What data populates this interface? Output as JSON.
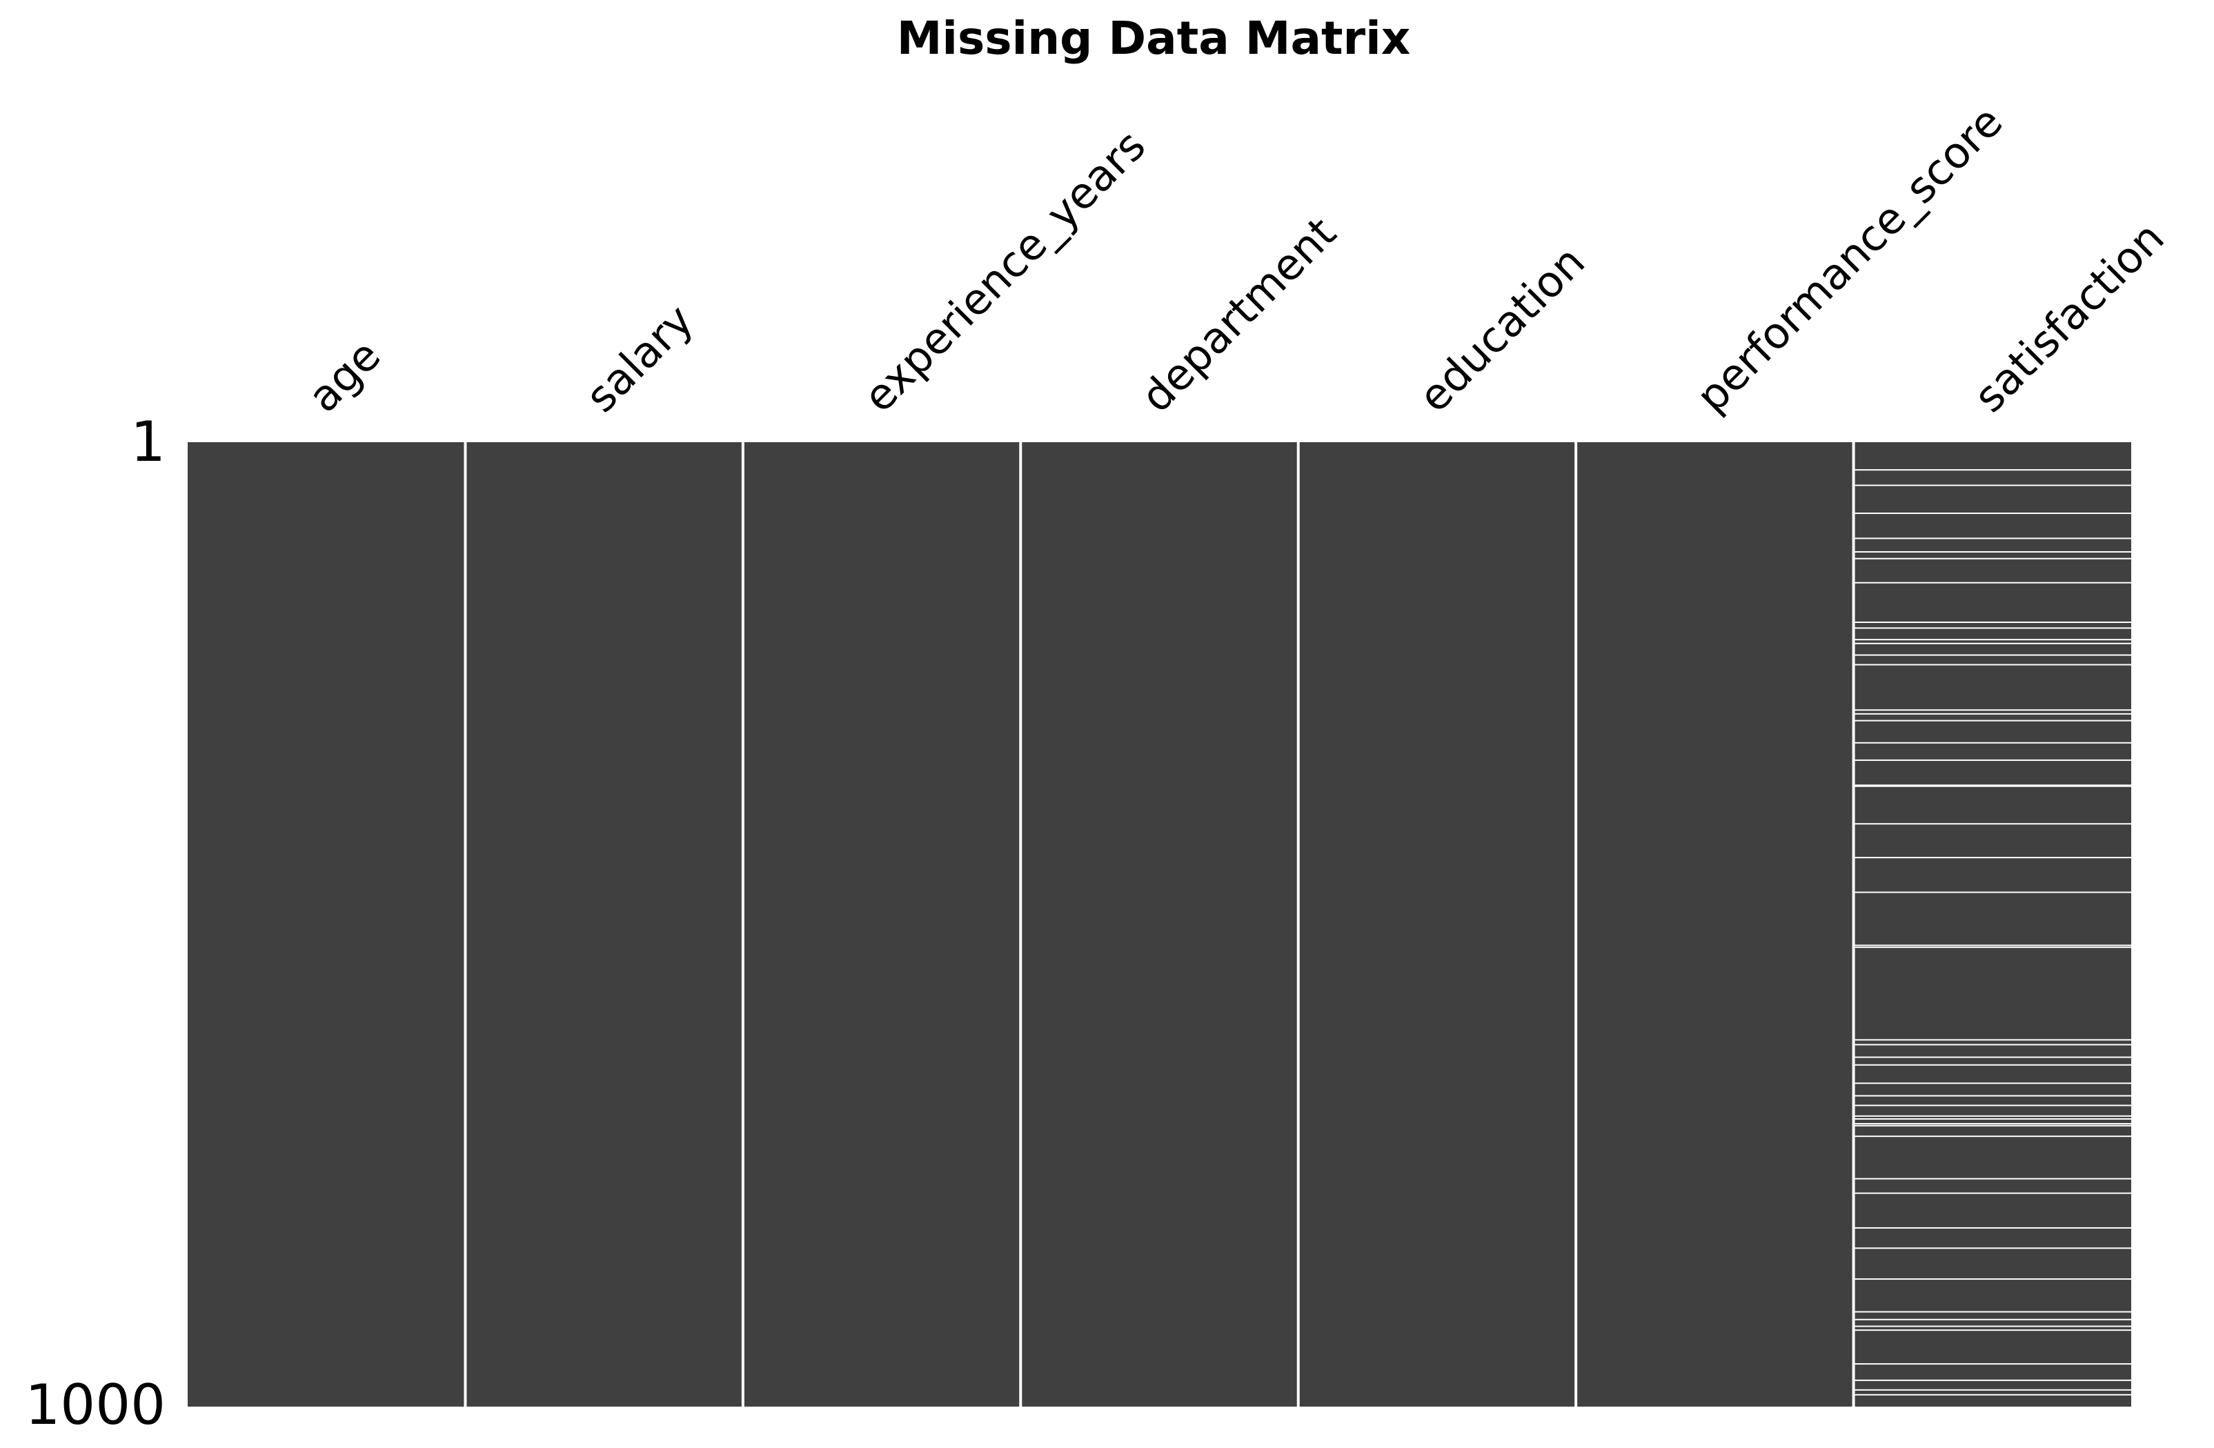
{
  "chart_data": {
    "type": "heatmap",
    "title": "Missing Data Matrix",
    "columns": [
      "age",
      "salary",
      "experience_years",
      "department",
      "education",
      "performance_score",
      "satisfaction"
    ],
    "row_count": 1000,
    "row_tick_labels": [
      "1",
      "1000"
    ],
    "present_color": "#404040",
    "missing_color": "#ffffff",
    "missing_counts": {
      "age": 0,
      "salary": 0,
      "experience_years": 0,
      "department": 0,
      "education": 0,
      "performance_score": 0,
      "satisfaction": 50
    },
    "missing_rows": {
      "age": [],
      "salary": [],
      "experience_years": [],
      "department": [],
      "education": [],
      "performance_score": [],
      "satisfaction": [
        29,
        45,
        74,
        100,
        114,
        121,
        146,
        187,
        193,
        205,
        209,
        221,
        231,
        278,
        282,
        289,
        312,
        330,
        356,
        357,
        396,
        431,
        467,
        522,
        524,
        620,
        625,
        638,
        646,
        665,
        678,
        688,
        699,
        702,
        707,
        709,
        720,
        764,
        779,
        815,
        836,
        868,
        902,
        910,
        917,
        921,
        956,
        973,
        983,
        988
      ]
    }
  }
}
